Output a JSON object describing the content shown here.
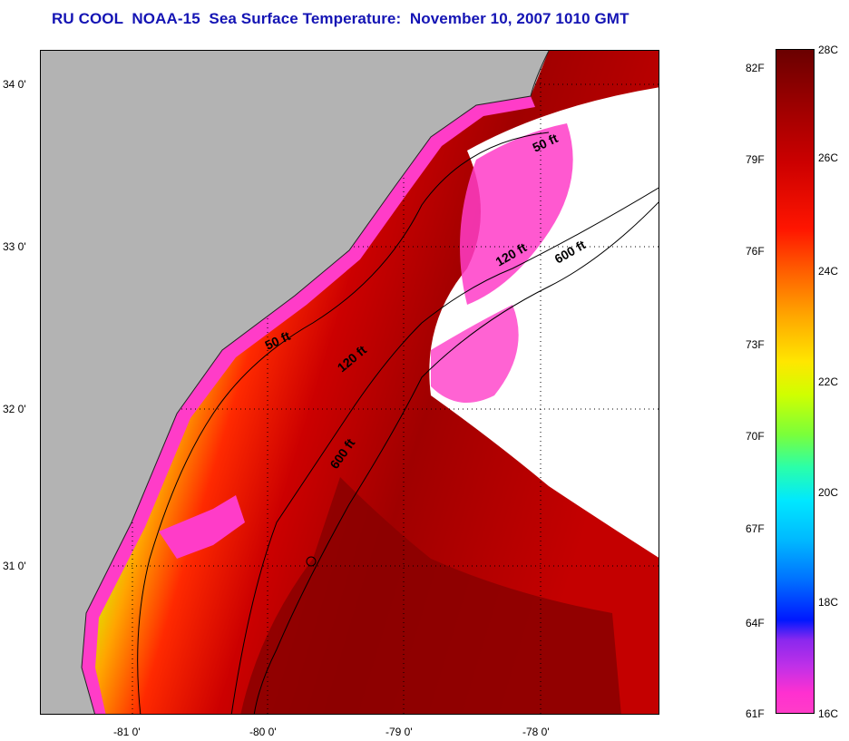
{
  "title": "RU COOL  NOAA-15  Sea Surface Temperature:  November 10, 2007 1010 GMT",
  "axes": {
    "y_ticks": [
      "34 0'",
      "33 0'",
      "32 0'",
      "31 0'"
    ],
    "x_ticks": [
      "-81 0'",
      "-80 0'",
      "-79 0'",
      "-78 0'"
    ]
  },
  "contours": [
    {
      "label": "50 ft"
    },
    {
      "label": "50 ft"
    },
    {
      "label": "120 ft"
    },
    {
      "label": "120 ft"
    },
    {
      "label": "600 ft"
    },
    {
      "label": "600 ft"
    }
  ],
  "colorbar": {
    "fahrenheit": [
      "82F",
      "79F",
      "76F",
      "73F",
      "70F",
      "67F",
      "64F",
      "61F"
    ],
    "celsius": [
      "28C",
      "26C",
      "24C",
      "22C",
      "20C",
      "18C",
      "16C"
    ],
    "colors": [
      "#6a0000",
      "#cc0000",
      "#ff5a00",
      "#ffe600",
      "#2affaa",
      "#00b8ff",
      "#0018ff",
      "#ff3cc8"
    ]
  },
  "colors": {
    "land": "#b3b3b3",
    "title": "#1414b4",
    "clouds": "#ffffff",
    "cold_edge": "#ff3cc8"
  }
}
